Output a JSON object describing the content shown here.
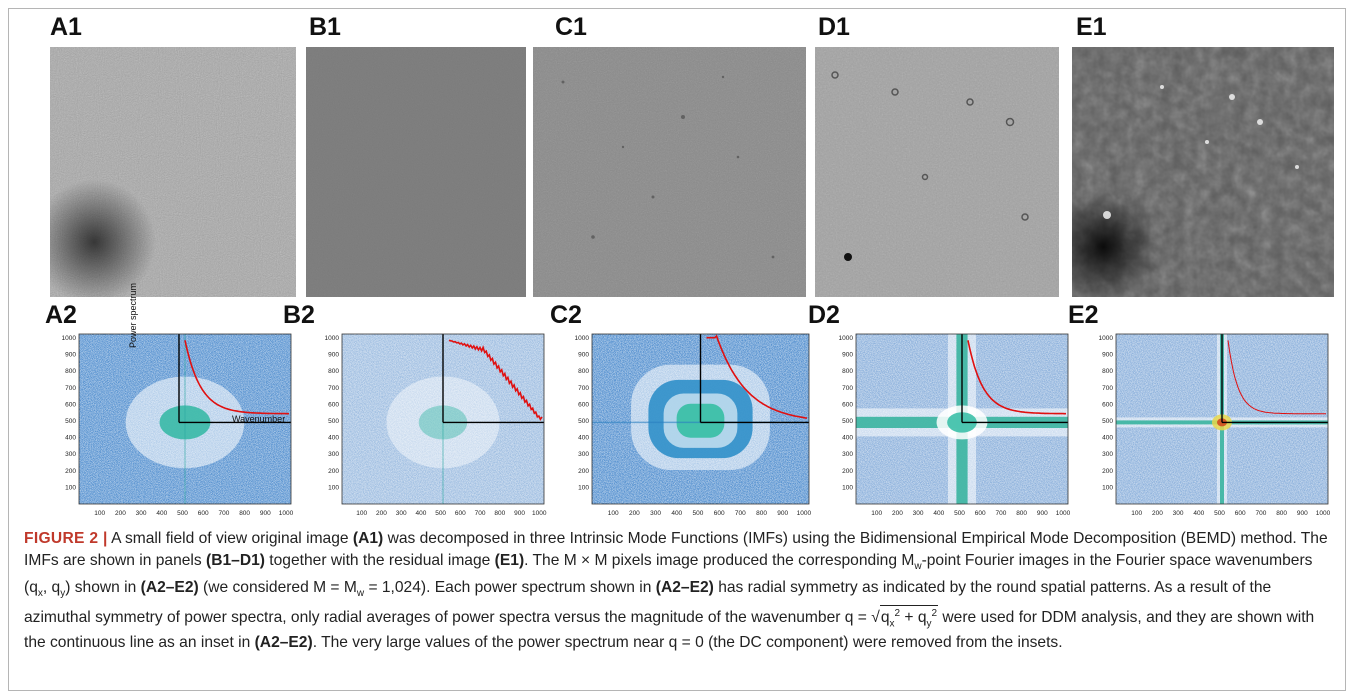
{
  "panels_row1": [
    {
      "label": "A1"
    },
    {
      "label": "B1"
    },
    {
      "label": "C1"
    },
    {
      "label": "D1"
    },
    {
      "label": "E1"
    }
  ],
  "panels_row2": [
    {
      "label": "A2"
    },
    {
      "label": "B2"
    },
    {
      "label": "C2"
    },
    {
      "label": "D2"
    },
    {
      "label": "E2"
    }
  ],
  "axis_ticks": {
    "x": [
      "100",
      "200",
      "300",
      "400",
      "500",
      "600",
      "700",
      "800",
      "900",
      "1000"
    ],
    "y": [
      "100",
      "200",
      "300",
      "400",
      "500",
      "600",
      "700",
      "800",
      "900",
      "1000"
    ]
  },
  "inset_labels": {
    "ylabel": "Power spectrum",
    "xlabel": "Wavenumber"
  },
  "caption": {
    "figure_number": "FIGURE 2 |",
    "t1": " A small field of view original image ",
    "b1": "(A1)",
    "t2": " was decomposed in three Intrinsic Mode Functions (IMFs) using the Bidimensional Empirical Mode Decomposition (BEMD) method. The IMFs are shown in panels ",
    "b2": "(B1–D1)",
    "t3": " together with the residual image ",
    "b3": "(E1)",
    "t4": ". The M × M pixels image produced the corresponding M",
    "sub_w": "w",
    "t5": "-point Fourier images in the Fourier space wavenumbers (q",
    "sub_x": "x",
    "t6": ", q",
    "sub_y": "y",
    "t7": ") shown in ",
    "b4": "(A2–E2)",
    "t8": " (we considered M = M",
    "sub_w2": "w",
    "t9": " = 1,024). Each power spectrum shown in ",
    "b5": "(A2–E2)",
    "t10": " has radial symmetry as indicated by the round spatial patterns. As a result of the azimuthal symmetry of power spectra, only radial averages of power spectra versus the magnitude of the wavenumber q = ",
    "sqrt_a": "q",
    "sqrt_sub_x": "x",
    "sqrt_sup": "2",
    "sqrt_plus": " + q",
    "sqrt_sub_y": "y",
    "sqrt_sup2": "2",
    "t11": " were used for DDM analysis, and they are shown with the continuous line as an inset in ",
    "b6": "(A2–E2)",
    "t12": ". The very large values of the power spectrum near q = 0 (the DC component) were removed from the insets."
  },
  "colors": {
    "figure_number": "#c0392b",
    "spectrum_bg": "#3a7fc8",
    "inset_curve": "#e01010"
  }
}
